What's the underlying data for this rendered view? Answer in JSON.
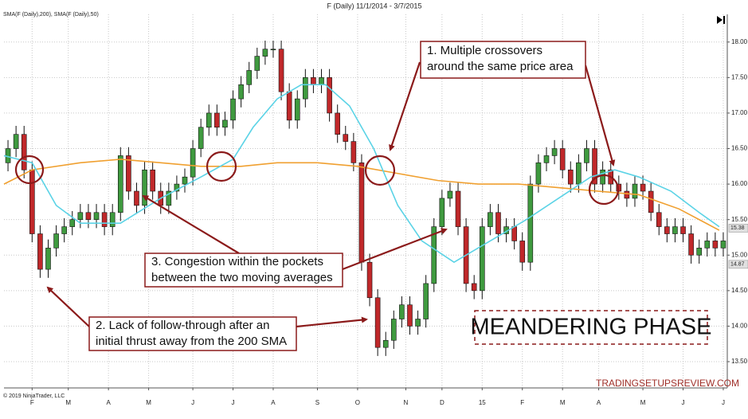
{
  "chart_data": {
    "type": "candlestick",
    "title": "F (Daily)  11/1/2014 - 3/7/2015",
    "indicator_label": "SMA(F (Daily),200), SMA(F (Daily),50)",
    "copyright": "© 2019 NinjaTrader, LLC",
    "watermark": "TRADINGSETUPSREVIEW.COM",
    "phase_label": "MEANDERING PHASE",
    "up_color": "#3f9a3f",
    "down_color": "#c0282a",
    "x": [
      1,
      3,
      5,
      7,
      9,
      11,
      13,
      15,
      17,
      19,
      21,
      23,
      25,
      27,
      29,
      31,
      33,
      35,
      37,
      39,
      41,
      43,
      45,
      47,
      49,
      51,
      53,
      55,
      57,
      59,
      61,
      63,
      65,
      67,
      69,
      71,
      73,
      75,
      77,
      79,
      81,
      83,
      85,
      87,
      89,
      91,
      93,
      95,
      97,
      99,
      101,
      103,
      105,
      107,
      109,
      111,
      113,
      115,
      117,
      119,
      121,
      123,
      125,
      127,
      129,
      131,
      133,
      135,
      137,
      139,
      141,
      143,
      145,
      147,
      149,
      151,
      153,
      155,
      157,
      159,
      161,
      163,
      165,
      167,
      169,
      171,
      173,
      175,
      177,
      179
    ],
    "open": [
      16.3,
      16.5,
      16.7,
      16.2,
      15.3,
      14.8,
      15.1,
      15.3,
      15.4,
      15.5,
      15.6,
      15.5,
      15.6,
      15.4,
      15.6,
      16.4,
      15.9,
      15.7,
      16.2,
      15.9,
      15.7,
      15.9,
      16.0,
      16.1,
      16.5,
      16.8,
      17.0,
      16.8,
      16.9,
      17.2,
      17.4,
      17.6,
      17.8,
      17.9,
      17.9,
      17.3,
      16.9,
      17.2,
      17.5,
      17.4,
      17.5,
      17.0,
      16.7,
      16.6,
      16.3,
      14.9,
      14.4,
      13.7,
      13.8,
      14.1,
      14.3,
      14.0,
      14.1,
      14.6,
      15.4,
      15.8,
      15.9,
      15.4,
      14.6,
      14.5,
      15.4,
      15.6,
      15.3,
      15.4,
      15.2,
      14.9,
      16.0,
      16.3,
      16.4,
      16.5,
      16.2,
      16.0,
      16.3,
      16.5,
      16.0,
      16.2,
      16.0,
      15.9,
      15.8,
      16.0,
      15.9,
      15.6,
      15.4,
      15.3,
      15.4,
      15.3,
      15.0,
      15.1,
      15.2,
      15.1
    ],
    "high": [
      16.62,
      16.82,
      16.82,
      16.32,
      15.42,
      15.22,
      15.42,
      15.52,
      15.62,
      15.72,
      15.72,
      15.72,
      15.72,
      15.72,
      16.52,
      16.52,
      16.02,
      16.32,
      16.32,
      16.02,
      16.02,
      16.12,
      16.22,
      16.62,
      16.92,
      17.12,
      17.12,
      17.02,
      17.32,
      17.52,
      17.72,
      17.92,
      18.02,
      18.02,
      18.02,
      17.42,
      17.32,
      17.62,
      17.62,
      17.62,
      17.62,
      17.12,
      16.82,
      16.72,
      16.42,
      15.02,
      14.52,
      13.92,
      14.22,
      14.42,
      14.42,
      14.22,
      14.72,
      15.52,
      15.92,
      16.02,
      16.02,
      15.52,
      14.72,
      15.52,
      15.72,
      15.72,
      15.52,
      15.52,
      15.32,
      16.12,
      16.42,
      16.52,
      16.62,
      16.62,
      16.32,
      16.42,
      16.62,
      16.62,
      16.32,
      16.32,
      16.12,
      16.02,
      16.12,
      16.12,
      16.02,
      15.72,
      15.52,
      15.52,
      15.52,
      15.42,
      15.22,
      15.32,
      15.32,
      15.32
    ],
    "low": [
      16.18,
      16.38,
      16.08,
      15.18,
      14.68,
      14.68,
      14.98,
      15.18,
      15.28,
      15.38,
      15.38,
      15.38,
      15.28,
      15.28,
      15.48,
      15.78,
      15.58,
      15.58,
      15.78,
      15.58,
      15.58,
      15.78,
      15.88,
      15.98,
      16.38,
      16.68,
      16.68,
      16.68,
      16.78,
      17.08,
      17.28,
      17.48,
      17.68,
      17.78,
      17.18,
      16.78,
      16.78,
      17.08,
      17.28,
      17.28,
      16.88,
      16.58,
      16.48,
      16.18,
      14.78,
      14.28,
      13.58,
      13.58,
      13.68,
      13.98,
      13.88,
      13.88,
      13.98,
      14.48,
      15.28,
      15.68,
      15.28,
      14.48,
      14.38,
      14.38,
      15.28,
      15.18,
      15.18,
      15.08,
      14.78,
      14.78,
      15.88,
      16.18,
      16.28,
      16.08,
      15.88,
      15.88,
      16.18,
      15.88,
      15.88,
      15.88,
      15.78,
      15.68,
      15.68,
      15.78,
      15.48,
      15.28,
      15.18,
      15.18,
      15.18,
      14.88,
      14.88,
      14.98,
      14.98,
      14.98
    ],
    "close": [
      16.5,
      16.7,
      16.2,
      15.3,
      14.8,
      15.1,
      15.3,
      15.4,
      15.5,
      15.6,
      15.5,
      15.6,
      15.4,
      15.6,
      16.4,
      15.9,
      15.7,
      16.2,
      15.9,
      15.7,
      15.9,
      16.0,
      16.1,
      16.5,
      16.8,
      17.0,
      16.8,
      16.9,
      17.2,
      17.4,
      17.6,
      17.8,
      17.9,
      17.9,
      17.3,
      16.9,
      17.2,
      17.5,
      17.4,
      17.5,
      17.0,
      16.7,
      16.6,
      16.3,
      14.9,
      14.4,
      13.7,
      13.8,
      14.1,
      14.3,
      14.0,
      14.1,
      14.6,
      15.4,
      15.8,
      15.9,
      15.4,
      14.6,
      14.5,
      15.4,
      15.6,
      15.3,
      15.4,
      15.2,
      14.9,
      16.0,
      16.3,
      16.4,
      16.5,
      16.2,
      16.0,
      16.3,
      16.5,
      16.0,
      16.2,
      16.0,
      15.9,
      15.8,
      16.0,
      15.9,
      15.6,
      15.4,
      15.3,
      15.4,
      15.3,
      15.0,
      15.1,
      15.2,
      15.1,
      15.2
    ],
    "series": [
      {
        "color": "#f0a030",
        "x": [
          0,
          7,
          19,
          29,
          39,
          49,
          59,
          68,
          78,
          88,
          98,
          108,
          118,
          128,
          138,
          148,
          158,
          168,
          178
        ],
        "values": [
          16.0,
          16.2,
          16.3,
          16.35,
          16.3,
          16.25,
          16.25,
          16.3,
          16.3,
          16.25,
          16.15,
          16.05,
          16.0,
          16.0,
          15.95,
          15.9,
          15.85,
          15.65,
          15.35
        ]
      },
      {
        "color": "#5bd3e6",
        "x": [
          0,
          7,
          13,
          19,
          29,
          39,
          49,
          57,
          62,
          68,
          74,
          80,
          86,
          92,
          98,
          104,
          112,
          118,
          124,
          130,
          138,
          146,
          152,
          158,
          166,
          173,
          178
        ],
        "values": [
          16.4,
          16.3,
          15.7,
          15.45,
          15.45,
          15.8,
          16.1,
          16.35,
          16.8,
          17.2,
          17.4,
          17.4,
          17.1,
          16.5,
          15.7,
          15.2,
          14.9,
          15.1,
          15.3,
          15.5,
          15.8,
          16.1,
          16.2,
          16.1,
          15.9,
          15.6,
          15.4
        ]
      }
    ],
    "price_markers": [
      15.38,
      14.87
    ],
    "xlim": [
      0,
      180
    ],
    "ylim": [
      13.13,
      18.39
    ],
    "xticks": [
      {
        "value": 7,
        "label": "F"
      },
      {
        "value": 16,
        "label": "M"
      },
      {
        "value": 26,
        "label": "A"
      },
      {
        "value": 36,
        "label": "M"
      },
      {
        "value": 47,
        "label": "J"
      },
      {
        "value": 57,
        "label": "J"
      },
      {
        "value": 67,
        "label": "A"
      },
      {
        "value": 78,
        "label": "S"
      },
      {
        "value": 88,
        "label": "O"
      },
      {
        "value": 100,
        "label": "N"
      },
      {
        "value": 109,
        "label": "D"
      },
      {
        "value": 119,
        "label": "15"
      },
      {
        "value": 129,
        "label": "F"
      },
      {
        "value": 139,
        "label": "M"
      },
      {
        "value": 148,
        "label": "A"
      },
      {
        "value": 159,
        "label": "M"
      },
      {
        "value": 169,
        "label": "J"
      },
      {
        "value": 179,
        "label": "J"
      }
    ],
    "yticks": [
      {
        "value": 13.5,
        "label": "13.50"
      },
      {
        "value": 14.0,
        "label": "14.00"
      },
      {
        "value": 14.5,
        "label": "14.50"
      },
      {
        "value": 15.0,
        "label": "15.00"
      },
      {
        "value": 15.5,
        "label": "15.50"
      },
      {
        "value": 16.0,
        "label": "16.00"
      },
      {
        "value": 16.5,
        "label": "16.50"
      },
      {
        "value": 17.0,
        "label": "17.00"
      },
      {
        "value": 17.5,
        "label": "17.50"
      },
      {
        "value": 18.0,
        "label": "18.00"
      }
    ],
    "grid": true,
    "annotations": [
      {
        "lines": [
          "1. Multiple crossovers",
          "around the same price area"
        ]
      },
      {
        "lines": [
          "3. Congestion within the pockets",
          "between the two moving averages"
        ]
      },
      {
        "lines": [
          "2. Lack of follow-through after an",
          "initial thrust away from the 200 SMA"
        ]
      }
    ]
  }
}
